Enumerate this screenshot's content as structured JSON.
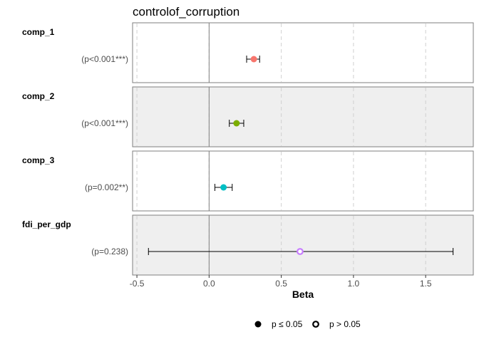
{
  "chart_data": {
    "type": "forest",
    "title": "controlof_corruption",
    "xlabel": "Beta",
    "xlim": [
      -0.53,
      1.83
    ],
    "xticks": [
      -0.5,
      0.0,
      0.5,
      1.0,
      1.5
    ],
    "xtick_labels": [
      "-0.5",
      "0.0",
      "0.5",
      "1.0",
      "1.5"
    ],
    "reference_line": 0,
    "grid": "vertical-dashed",
    "rows": [
      {
        "variable": "comp_1",
        "p_label": "(p<0.001***)",
        "estimate": 0.31,
        "ci_low": 0.26,
        "ci_high": 0.35,
        "significant": true,
        "color": "#f8766d",
        "shaded": false
      },
      {
        "variable": "comp_2",
        "p_label": "(p<0.001***)",
        "estimate": 0.19,
        "ci_low": 0.14,
        "ci_high": 0.24,
        "significant": true,
        "color": "#7cae00",
        "shaded": true
      },
      {
        "variable": "comp_3",
        "p_label": "(p=0.002**)",
        "estimate": 0.1,
        "ci_low": 0.04,
        "ci_high": 0.16,
        "significant": true,
        "color": "#00bfc4",
        "shaded": false
      },
      {
        "variable": "fdi_per_gdp",
        "p_label": "(p=0.238)",
        "estimate": 0.63,
        "ci_low": -0.42,
        "ci_high": 1.69,
        "significant": false,
        "color": "#c77cff",
        "shaded": true
      }
    ],
    "legend": {
      "position": "bottom",
      "items": [
        {
          "label": "p ≤ 0.05",
          "shape": "filled"
        },
        {
          "label": "p > 0.05",
          "shape": "open"
        }
      ]
    }
  }
}
